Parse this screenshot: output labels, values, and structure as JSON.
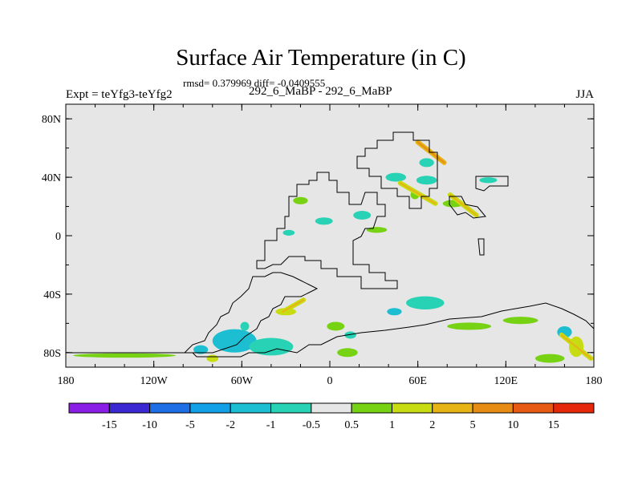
{
  "chart_data": {
    "type": "heatmap",
    "title": "Surface Air Temperature (in C)",
    "subtitle": "rmsd= 0.379969 diff= -0.0409555",
    "left_string": "Expt = teYfg3-teYfg2",
    "center_string": "292_6_MaBP - 292_6_MaBP",
    "right_string": "JJA",
    "x_range": [
      -180,
      180
    ],
    "y_range": [
      -90,
      90
    ],
    "x_ticks": [
      {
        "value": -180,
        "label": "180"
      },
      {
        "value": -120,
        "label": "120W"
      },
      {
        "value": -60,
        "label": "60W"
      },
      {
        "value": 0,
        "label": "0"
      },
      {
        "value": 60,
        "label": "60E"
      },
      {
        "value": 120,
        "label": "120E"
      },
      {
        "value": 180,
        "label": "180"
      }
    ],
    "y_ticks": [
      {
        "value": 80,
        "label": "80N"
      },
      {
        "value": 40,
        "label": "40N"
      },
      {
        "value": 0,
        "label": "0"
      },
      {
        "value": -40,
        "label": "40S"
      },
      {
        "value": -80,
        "label": "80S"
      }
    ],
    "background_color": "#e6e6e6",
    "colorbar": {
      "levels": [
        "-15",
        "-10",
        "-5",
        "-2",
        "-1",
        "-0.5",
        "0.5",
        "1",
        "2",
        "5",
        "10",
        "15"
      ],
      "colors": [
        "#8a1ee6",
        "#3c28d2",
        "#1e6ee6",
        "#14a0e6",
        "#1ebed2",
        "#28d2b4",
        "#e6e6e6",
        "#78d214",
        "#c8dc14",
        "#e6b414",
        "#e68c14",
        "#e65a14",
        "#e6280a"
      ]
    },
    "anomaly_patches": [
      {
        "lon": -65,
        "lat": -72,
        "w": 30,
        "h": 16,
        "bin": 4
      },
      {
        "lon": -40,
        "lat": -76,
        "w": 30,
        "h": 12,
        "bin": 5
      },
      {
        "lon": -58,
        "lat": -62,
        "w": 6,
        "h": 6,
        "bin": 5
      },
      {
        "lon": -88,
        "lat": -78,
        "w": 10,
        "h": 6,
        "bin": 4
      },
      {
        "lon": -80,
        "lat": -84,
        "w": 8,
        "h": 5,
        "bin": 8
      },
      {
        "lon": -30,
        "lat": -52,
        "w": 14,
        "h": 5,
        "bin": 8
      },
      {
        "lon": 12,
        "lat": -80,
        "w": 14,
        "h": 6,
        "bin": 7
      },
      {
        "lon": 4,
        "lat": -62,
        "w": 12,
        "h": 6,
        "bin": 7
      },
      {
        "lon": 14,
        "lat": -68,
        "w": 8,
        "h": 5,
        "bin": 5
      },
      {
        "lon": 44,
        "lat": -52,
        "w": 10,
        "h": 5,
        "bin": 4
      },
      {
        "lon": 65,
        "lat": -46,
        "w": 26,
        "h": 9,
        "bin": 5
      },
      {
        "lon": 95,
        "lat": -62,
        "w": 30,
        "h": 5,
        "bin": 7
      },
      {
        "lon": 130,
        "lat": -58,
        "w": 24,
        "h": 5,
        "bin": 7
      },
      {
        "lon": 160,
        "lat": -66,
        "w": 10,
        "h": 8,
        "bin": 4
      },
      {
        "lon": 168,
        "lat": -76,
        "w": 10,
        "h": 14,
        "bin": 8
      },
      {
        "lon": 150,
        "lat": -84,
        "w": 20,
        "h": 6,
        "bin": 7
      },
      {
        "lon": -140,
        "lat": -82,
        "w": 70,
        "h": 3,
        "bin": 7
      },
      {
        "lon": -20,
        "lat": 24,
        "w": 10,
        "h": 5,
        "bin": 7
      },
      {
        "lon": -4,
        "lat": 10,
        "w": 12,
        "h": 5,
        "bin": 5
      },
      {
        "lon": -28,
        "lat": 2,
        "w": 8,
        "h": 4,
        "bin": 5
      },
      {
        "lon": 22,
        "lat": 14,
        "w": 12,
        "h": 6,
        "bin": 5
      },
      {
        "lon": 32,
        "lat": 4,
        "w": 14,
        "h": 4,
        "bin": 7
      },
      {
        "lon": 45,
        "lat": 40,
        "w": 14,
        "h": 6,
        "bin": 5
      },
      {
        "lon": 66,
        "lat": 38,
        "w": 14,
        "h": 6,
        "bin": 5
      },
      {
        "lon": 58,
        "lat": 28,
        "w": 6,
        "h": 6,
        "bin": 7
      },
      {
        "lon": 84,
        "lat": 22,
        "w": 14,
        "h": 5,
        "bin": 7
      },
      {
        "lon": 108,
        "lat": 38,
        "w": 12,
        "h": 4,
        "bin": 5
      },
      {
        "lon": 66,
        "lat": 50,
        "w": 10,
        "h": 6,
        "bin": 5
      }
    ],
    "diagonal_bands": [
      {
        "lon1": 48,
        "lat1": 36,
        "lon2": 72,
        "lat2": 22,
        "color_bin": 8
      },
      {
        "lon1": 60,
        "lat1": 64,
        "lon2": 78,
        "lat2": 50,
        "color_bin": 9
      },
      {
        "lon1": 82,
        "lat1": 28,
        "lon2": 100,
        "lat2": 14,
        "color_bin": 8
      },
      {
        "lon1": -32,
        "lat1": -52,
        "lon2": -18,
        "lat2": -44,
        "color_bin": 8
      },
      {
        "lon1": 158,
        "lat1": -68,
        "lon2": 178,
        "lat2": -84,
        "color_bin": 8
      }
    ]
  }
}
